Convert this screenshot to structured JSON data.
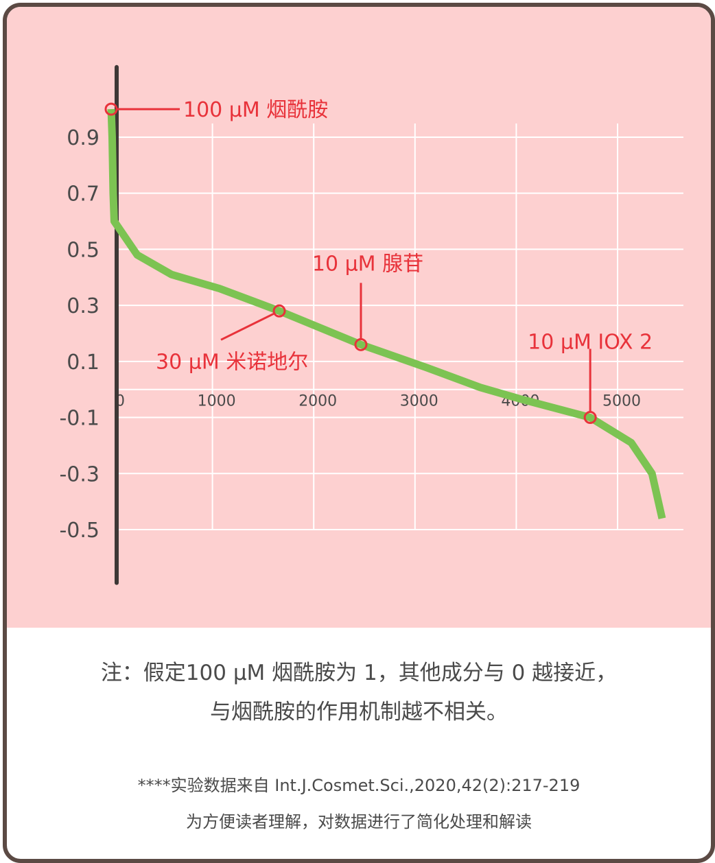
{
  "chart_data": {
    "type": "line",
    "series": [
      {
        "color": "#7cc352",
        "x": [
          0,
          10,
          20,
          30,
          257,
          596,
          1070,
          1660,
          2466,
          3100,
          3645,
          4050,
          4730,
          5135,
          5340,
          5440
        ],
        "values": [
          1.0,
          0.9,
          0.7,
          0.6,
          0.48,
          0.41,
          0.36,
          0.28,
          0.16,
          0.08,
          0.007,
          -0.035,
          -0.1,
          -0.19,
          -0.3,
          -0.46
        ]
      }
    ],
    "annotations": [
      {
        "text": "100 μM 烟酰胺",
        "x": 0,
        "y": 1.0
      },
      {
        "text": "30 μM 米诺地尔",
        "x": 1660,
        "y": 0.28
      },
      {
        "text": "10 μM 腺苷",
        "x": 2466,
        "y": 0.16
      },
      {
        "text": "10 μM IOX 2",
        "x": 4730,
        "y": -0.1
      }
    ],
    "annotation_color": "#e8323a",
    "xlim": [
      0,
      5650
    ],
    "ylim": [
      -0.69,
      1.15
    ],
    "xticks": [
      0,
      1000,
      2000,
      3000,
      4000,
      5000
    ],
    "yticks": [
      0.9,
      0.7,
      0.5,
      0.3,
      0.1,
      -0.1,
      -0.3,
      -0.5
    ],
    "grid": true
  },
  "notes": [
    "注：假定100 μM 烟酰胺为 1，其他成分与 0 越接近，",
    "与烟酰胺的作用机制越不相关。"
  ],
  "source": [
    "****实验数据来自 Int.J.Cosmet.Sci.,2020,42(2):217-219",
    "为方便读者理解，对数据进行了简化处理和解读"
  ]
}
